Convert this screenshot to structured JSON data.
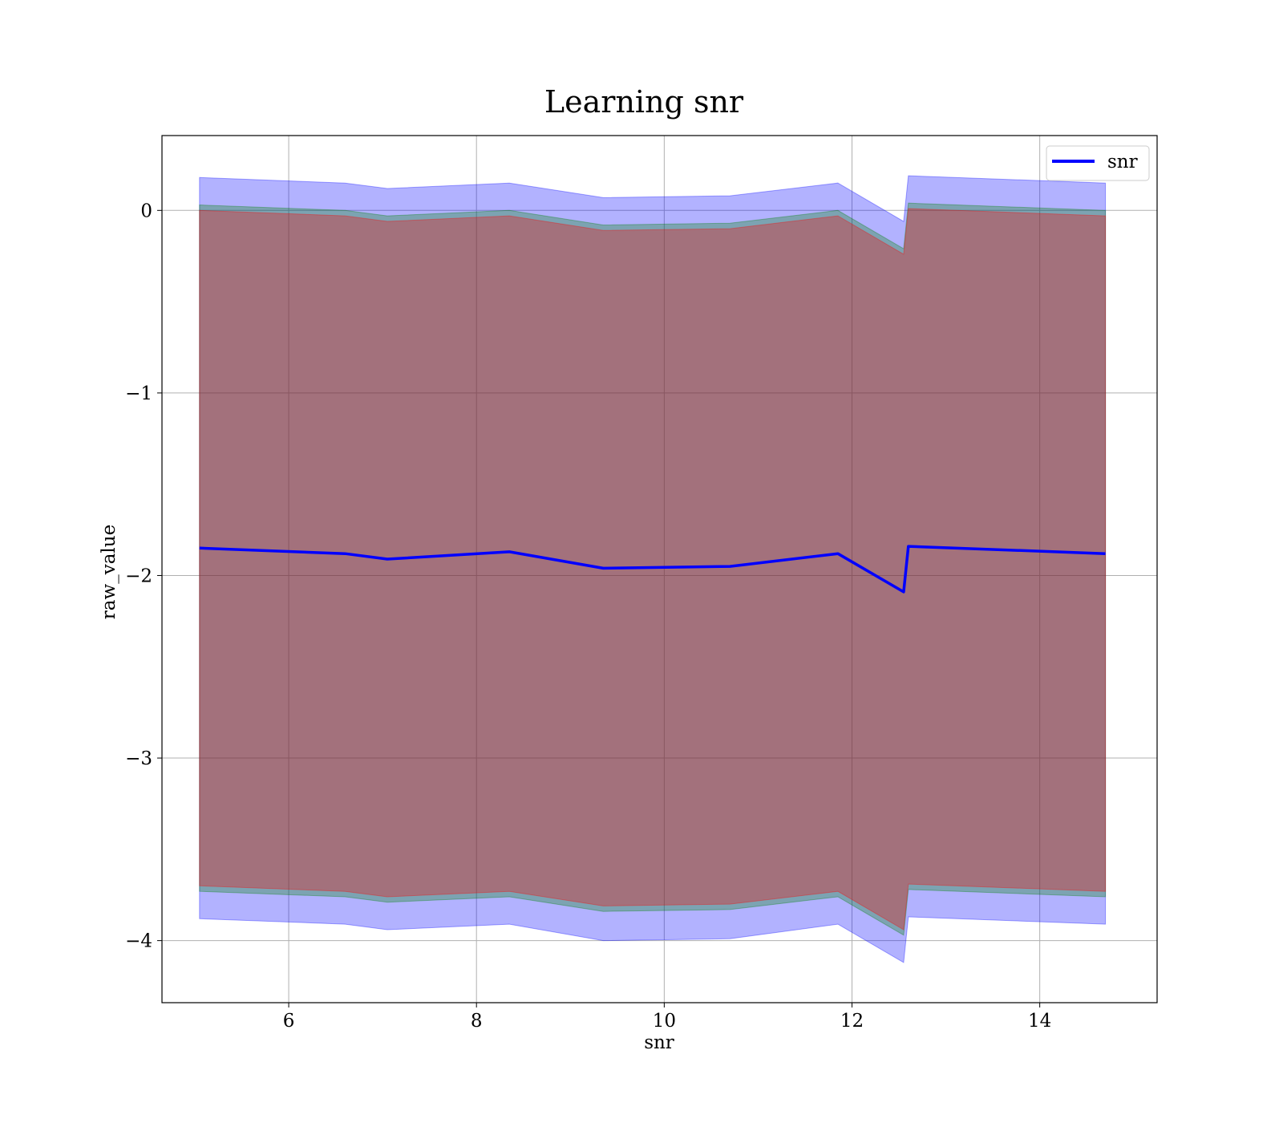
{
  "chart_data": {
    "type": "line",
    "title": "Learning snr",
    "xlabel": "snr",
    "ylabel": "raw_value",
    "xlim": [
      4.65,
      15.25
    ],
    "ylim": [
      -4.34,
      0.41
    ],
    "x_ticks": [
      6,
      8,
      10,
      12,
      14
    ],
    "x_tick_labels": [
      "6",
      "8",
      "10",
      "12",
      "14"
    ],
    "y_ticks": [
      0,
      -1,
      -2,
      -3,
      -4
    ],
    "y_tick_labels": [
      "0",
      "−1",
      "−2",
      "−3",
      "−4"
    ],
    "grid": true,
    "legend": {
      "position": "top-right",
      "entries": [
        "snr"
      ]
    },
    "x": [
      5.05,
      6.6,
      7.05,
      8.35,
      9.35,
      10.7,
      11.85,
      12.55,
      12.6,
      14.7
    ],
    "series": [
      {
        "name": "snr",
        "color": "#0000ff",
        "values": [
          -1.85,
          -1.88,
          -1.91,
          -1.87,
          -1.96,
          -1.95,
          -1.88,
          -2.09,
          -1.84,
          -1.88
        ]
      }
    ],
    "bands": [
      {
        "color": "#0000ff",
        "opacity": 0.3,
        "upper": [
          0.18,
          0.15,
          0.12,
          0.15,
          0.07,
          0.08,
          0.15,
          -0.06,
          0.19,
          0.15
        ],
        "lower": [
          -3.88,
          -3.91,
          -3.94,
          -3.91,
          -4.0,
          -3.99,
          -3.91,
          -4.12,
          -3.87,
          -3.91
        ]
      },
      {
        "color": "#008000",
        "opacity": 0.3,
        "upper": [
          0.03,
          0.0,
          -0.03,
          0.0,
          -0.08,
          -0.07,
          0.0,
          -0.21,
          0.04,
          0.0
        ],
        "lower": [
          -3.73,
          -3.76,
          -3.79,
          -3.76,
          -3.84,
          -3.83,
          -3.76,
          -3.97,
          -3.72,
          -3.76
        ]
      },
      {
        "color": "#ff0000",
        "opacity": 0.3,
        "upper": [
          0.0,
          -0.03,
          -0.06,
          -0.03,
          -0.11,
          -0.1,
          -0.03,
          -0.24,
          0.01,
          -0.03
        ],
        "lower": [
          -3.7,
          -3.73,
          -3.76,
          -3.73,
          -3.81,
          -3.8,
          -3.73,
          -3.94,
          -3.69,
          -3.73
        ]
      }
    ]
  }
}
